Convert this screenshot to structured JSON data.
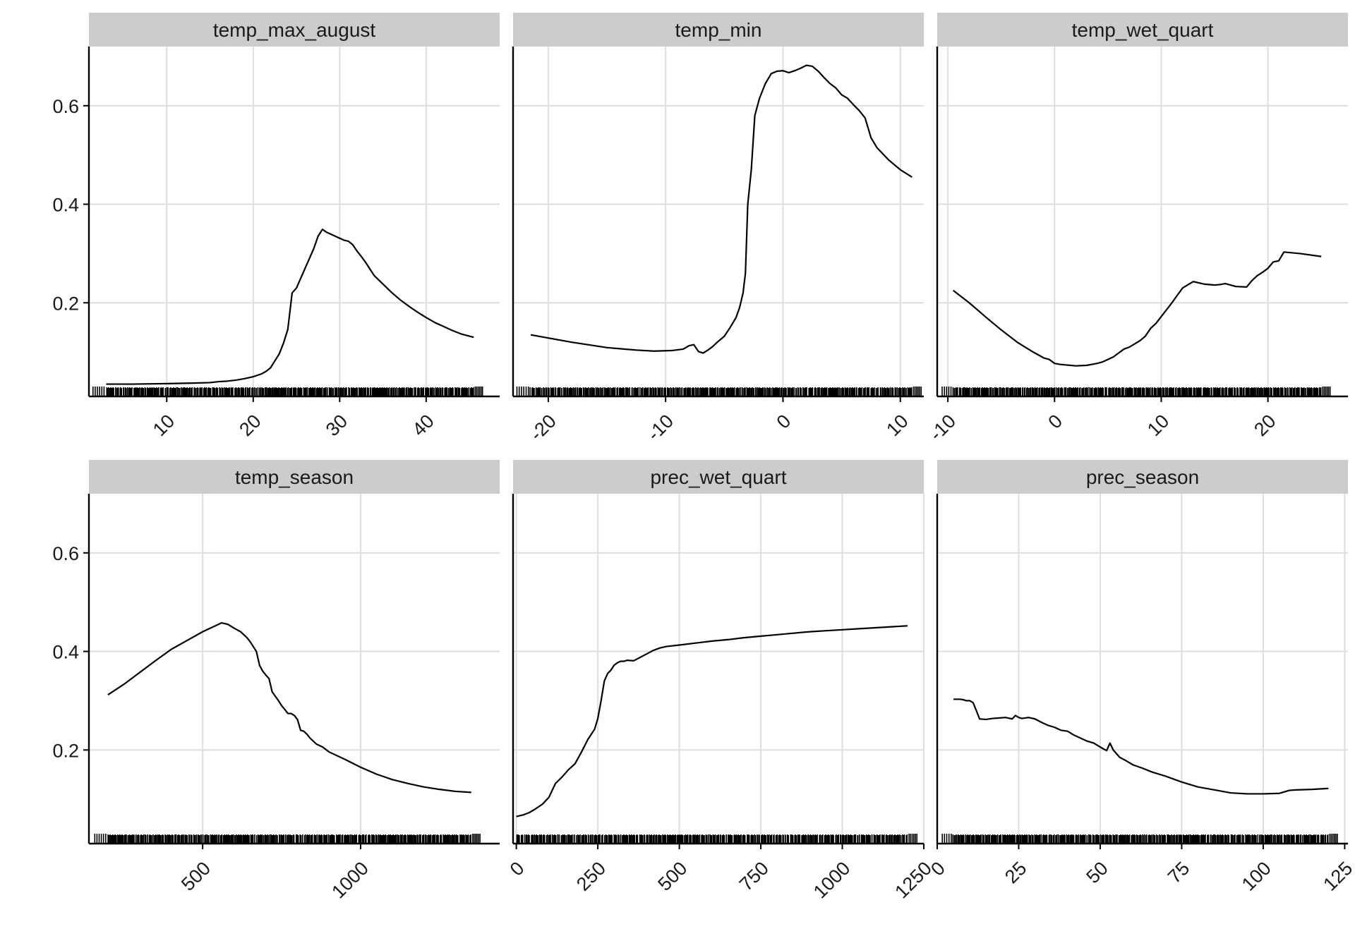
{
  "chart_data": [
    {
      "type": "line",
      "title": "temp_max_august",
      "xlabel": "",
      "ylabel": "",
      "xlim": [
        1,
        48.5
      ],
      "ylim": [
        0.01,
        0.72
      ],
      "x_ticks": [
        "10",
        "20",
        "30",
        "40"
      ],
      "y_ticks": [
        "0.2",
        "0.4",
        "0.6"
      ],
      "grid": true,
      "rug": true,
      "series": [
        {
          "x": [
            3,
            6,
            10,
            13,
            15,
            16,
            17,
            18,
            19,
            20,
            21,
            21.5,
            22,
            22.5,
            23,
            23.5,
            24,
            24.5,
            25,
            25.5,
            26,
            26.5,
            27,
            27.5,
            28,
            28.5,
            29,
            30,
            30.5,
            31,
            31.5,
            32,
            32.5,
            33,
            34,
            35,
            36,
            37,
            38,
            39,
            40,
            41,
            42,
            43,
            44,
            45.5
          ],
          "y": [
            0.035,
            0.035,
            0.036,
            0.037,
            0.038,
            0.04,
            0.041,
            0.043,
            0.046,
            0.05,
            0.056,
            0.061,
            0.068,
            0.082,
            0.096,
            0.118,
            0.146,
            0.22,
            0.23,
            0.25,
            0.27,
            0.29,
            0.31,
            0.335,
            0.349,
            0.343,
            0.339,
            0.331,
            0.327,
            0.325,
            0.318,
            0.305,
            0.294,
            0.282,
            0.255,
            0.238,
            0.221,
            0.206,
            0.193,
            0.181,
            0.17,
            0.16,
            0.152,
            0.144,
            0.137,
            0.13
          ]
        }
      ]
    },
    {
      "type": "line",
      "title": "temp_min",
      "xlabel": "",
      "ylabel": "",
      "xlim": [
        -23,
        12
      ],
      "ylim": [
        0.01,
        0.72
      ],
      "x_ticks": [
        "-20",
        "-10",
        "0",
        "10"
      ],
      "y_ticks": [
        "0.2",
        "0.4",
        "0.6"
      ],
      "grid": true,
      "rug": true,
      "series": [
        {
          "x": [
            -21.5,
            -18,
            -15,
            -12.5,
            -11,
            -9.5,
            -8.5,
            -8,
            -7.6,
            -7.2,
            -6.8,
            -6.4,
            -6,
            -5.6,
            -5,
            -4.5,
            -4,
            -3.7,
            -3.4,
            -3.2,
            -3,
            -2.7,
            -2.4,
            -2,
            -1.5,
            -1,
            -0.5,
            0,
            0.5,
            1,
            1.5,
            2,
            2.5,
            3,
            3.5,
            4,
            4.5,
            5,
            5.5,
            6,
            6.5,
            7,
            7.5,
            8,
            9,
            10,
            11
          ],
          "y": [
            0.135,
            0.12,
            0.109,
            0.104,
            0.102,
            0.103,
            0.106,
            0.113,
            0.115,
            0.101,
            0.098,
            0.104,
            0.111,
            0.12,
            0.132,
            0.15,
            0.17,
            0.19,
            0.22,
            0.26,
            0.4,
            0.47,
            0.58,
            0.615,
            0.645,
            0.665,
            0.67,
            0.671,
            0.667,
            0.671,
            0.676,
            0.682,
            0.68,
            0.67,
            0.657,
            0.645,
            0.636,
            0.622,
            0.615,
            0.602,
            0.59,
            0.575,
            0.535,
            0.515,
            0.49,
            0.47,
            0.455
          ]
        }
      ]
    },
    {
      "type": "line",
      "title": "temp_wet_quart",
      "xlabel": "",
      "ylabel": "",
      "xlim": [
        -11,
        27.5
      ],
      "ylim": [
        0.01,
        0.72
      ],
      "x_ticks": [
        "-10",
        "0",
        "10",
        "20"
      ],
      "y_ticks": [
        "0.2",
        "0.4",
        "0.6"
      ],
      "grid": true,
      "rug": true,
      "series": [
        {
          "x": [
            -9.5,
            -8,
            -6.5,
            -5,
            -3.5,
            -2,
            -1,
            -0.5,
            0,
            0.5,
            1,
            1.5,
            2,
            3,
            4,
            4.5,
            5,
            5.5,
            6,
            6.5,
            7,
            8,
            8.5,
            9,
            9.5,
            10,
            11,
            11.5,
            12,
            13,
            14,
            15,
            15.5,
            16,
            17,
            18,
            18.5,
            19,
            19.5,
            20,
            20.5,
            21,
            21.5,
            23,
            25
          ],
          "y": [
            0.225,
            0.2,
            0.172,
            0.145,
            0.12,
            0.1,
            0.088,
            0.085,
            0.077,
            0.075,
            0.074,
            0.073,
            0.072,
            0.073,
            0.077,
            0.08,
            0.085,
            0.09,
            0.098,
            0.106,
            0.11,
            0.123,
            0.132,
            0.148,
            0.158,
            0.172,
            0.2,
            0.215,
            0.23,
            0.243,
            0.238,
            0.236,
            0.237,
            0.239,
            0.233,
            0.232,
            0.245,
            0.255,
            0.262,
            0.27,
            0.283,
            0.285,
            0.303,
            0.3,
            0.294
          ]
        }
      ]
    },
    {
      "type": "line",
      "title": "temp_season",
      "xlabel": "",
      "ylabel": "",
      "xlim": [
        140,
        1440
      ],
      "ylim": [
        0.01,
        0.72
      ],
      "x_ticks": [
        "500",
        "1000"
      ],
      "y_ticks": [
        "0.2",
        "0.4",
        "0.6"
      ],
      "grid": true,
      "rug": true,
      "series": [
        {
          "x": [
            200,
            250,
            300,
            350,
            400,
            450,
            500,
            540,
            560,
            580,
            600,
            620,
            640,
            650,
            660,
            670,
            680,
            690,
            700,
            710,
            720,
            740,
            750,
            760,
            770,
            780,
            790,
            800,
            810,
            820,
            830,
            840,
            860,
            880,
            900,
            950,
            1000,
            1050,
            1100,
            1150,
            1200,
            1250,
            1300,
            1350
          ],
          "y": [
            0.312,
            0.333,
            0.357,
            0.381,
            0.404,
            0.422,
            0.44,
            0.452,
            0.458,
            0.455,
            0.447,
            0.44,
            0.428,
            0.42,
            0.41,
            0.4,
            0.372,
            0.36,
            0.352,
            0.345,
            0.318,
            0.3,
            0.29,
            0.282,
            0.274,
            0.274,
            0.27,
            0.262,
            0.24,
            0.238,
            0.232,
            0.224,
            0.212,
            0.206,
            0.196,
            0.181,
            0.165,
            0.151,
            0.14,
            0.132,
            0.125,
            0.12,
            0.116,
            0.114
          ]
        }
      ]
    },
    {
      "type": "line",
      "title": "prec_wet_quart",
      "xlabel": "",
      "ylabel": "",
      "xlim": [
        -10,
        1250
      ],
      "ylim": [
        0.01,
        0.72
      ],
      "x_ticks": [
        "0",
        "250",
        "500",
        "750",
        "1000",
        "1250"
      ],
      "y_ticks": [
        "0.2",
        "0.4",
        "0.6"
      ],
      "grid": true,
      "rug": true,
      "series": [
        {
          "x": [
            0,
            20,
            40,
            60,
            80,
            100,
            120,
            140,
            160,
            180,
            200,
            220,
            240,
            250,
            260,
            270,
            280,
            290,
            300,
            310,
            320,
            330,
            340,
            360,
            380,
            400,
            420,
            440,
            460,
            500,
            550,
            600,
            650,
            700,
            750,
            800,
            850,
            900,
            950,
            1000,
            1050,
            1100,
            1150,
            1200
          ],
          "y": [
            0.065,
            0.068,
            0.073,
            0.081,
            0.09,
            0.104,
            0.132,
            0.145,
            0.16,
            0.172,
            0.196,
            0.222,
            0.242,
            0.264,
            0.3,
            0.34,
            0.355,
            0.362,
            0.372,
            0.377,
            0.38,
            0.38,
            0.382,
            0.381,
            0.388,
            0.395,
            0.402,
            0.407,
            0.41,
            0.413,
            0.417,
            0.421,
            0.424,
            0.428,
            0.431,
            0.434,
            0.437,
            0.44,
            0.442,
            0.444,
            0.446,
            0.448,
            0.45,
            0.452
          ]
        }
      ]
    },
    {
      "type": "line",
      "title": "prec_season",
      "xlabel": "",
      "ylabel": "",
      "xlim": [
        0,
        126
      ],
      "ylim": [
        0.01,
        0.72
      ],
      "x_ticks": [
        "0",
        "25",
        "50",
        "75",
        "100",
        "125"
      ],
      "y_ticks": [
        "0.2",
        "0.4",
        "0.6"
      ],
      "grid": true,
      "rug": true,
      "series": [
        {
          "x": [
            5,
            7,
            8,
            9,
            10,
            11,
            12,
            13,
            15,
            17,
            19,
            21,
            23,
            24,
            25,
            26,
            28,
            30,
            32,
            34,
            36,
            38,
            40,
            42,
            44,
            46,
            48,
            50,
            51,
            52,
            53,
            54,
            56,
            58,
            60,
            63,
            66,
            70,
            75,
            80,
            85,
            90,
            95,
            100,
            105,
            108,
            110,
            115,
            120
          ],
          "y": [
            0.303,
            0.303,
            0.302,
            0.3,
            0.3,
            0.296,
            0.28,
            0.263,
            0.262,
            0.264,
            0.265,
            0.266,
            0.263,
            0.27,
            0.266,
            0.264,
            0.266,
            0.263,
            0.256,
            0.25,
            0.246,
            0.24,
            0.238,
            0.23,
            0.224,
            0.218,
            0.214,
            0.206,
            0.202,
            0.199,
            0.214,
            0.2,
            0.185,
            0.178,
            0.17,
            0.163,
            0.155,
            0.147,
            0.135,
            0.125,
            0.119,
            0.113,
            0.111,
            0.111,
            0.112,
            0.118,
            0.119,
            0.12,
            0.122
          ]
        }
      ]
    }
  ]
}
